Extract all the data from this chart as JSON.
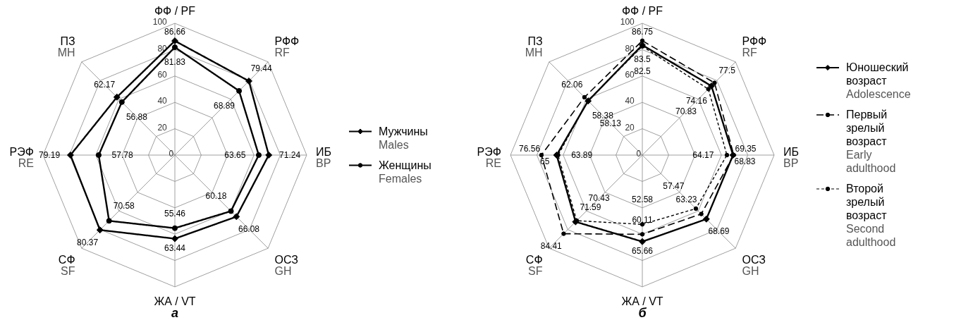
{
  "chart_data": [
    {
      "type": "radar",
      "title": "а",
      "categories": [
        "ФФ / PF",
        "РФФ\nRF",
        "ИБ\nBP",
        "ОСЗ\nGH",
        "ЖА / VT",
        "СФ\nSF",
        "РЭФ\nRE",
        "ПЗ\nMH"
      ],
      "ylim": [
        0,
        100
      ],
      "yticks": [
        0,
        20,
        40,
        60,
        80,
        100
      ],
      "data_labels": true,
      "legend": "right",
      "grid": true,
      "series": [
        {
          "name": "Мужчины\nMales",
          "color": "#000000",
          "marker": "diamond",
          "line_style": "solid",
          "values": [
            86.66,
            79.44,
            71.24,
            66.08,
            63.44,
            80.37,
            79.19,
            62.17
          ]
        },
        {
          "name": "Женщины\nFemales",
          "color": "#000000",
          "marker": "circle",
          "line_style": "solid",
          "values": [
            81.83,
            68.89,
            63.65,
            60.18,
            55.46,
            70.58,
            57.78,
            56.88
          ]
        }
      ]
    },
    {
      "type": "radar",
      "title": "б",
      "categories": [
        "ФФ / PF",
        "РФФ\nRF",
        "ИБ\nBP",
        "ОСЗ\nGH",
        "ЖА / VT",
        "СФ\nSF",
        "РЭФ\nRE",
        "ПЗ\nMH"
      ],
      "ylim": [
        0,
        100
      ],
      "yticks": [
        0,
        20,
        40,
        60,
        80,
        100
      ],
      "data_labels": true,
      "legend": "right",
      "grid": true,
      "series": [
        {
          "name": "Юношеский\nвозраст\nAdolescence",
          "color": "#000000",
          "marker": "diamond",
          "line_style": "solid",
          "values": [
            83.5,
            74.16,
            68.83,
            68.69,
            65.66,
            71.59,
            65,
            58.13
          ]
        },
        {
          "name": "Первый\nзрелый\nвозраст\nEarly\nadulthood",
          "color": "#000000",
          "marker": "circle",
          "line_style": "dashed",
          "values": [
            86.75,
            77.5,
            69.35,
            63.23,
            60.11,
            84.41,
            76.56,
            62.06
          ]
        },
        {
          "name": "Второй\nзрелый\nвозраст\nSecond\nadulthood",
          "color": "#000000",
          "marker": "circle",
          "line_style": "dotted",
          "values": [
            82.5,
            70.83,
            64.17,
            57.47,
            52.58,
            70.43,
            63.89,
            58.38
          ]
        }
      ]
    }
  ]
}
